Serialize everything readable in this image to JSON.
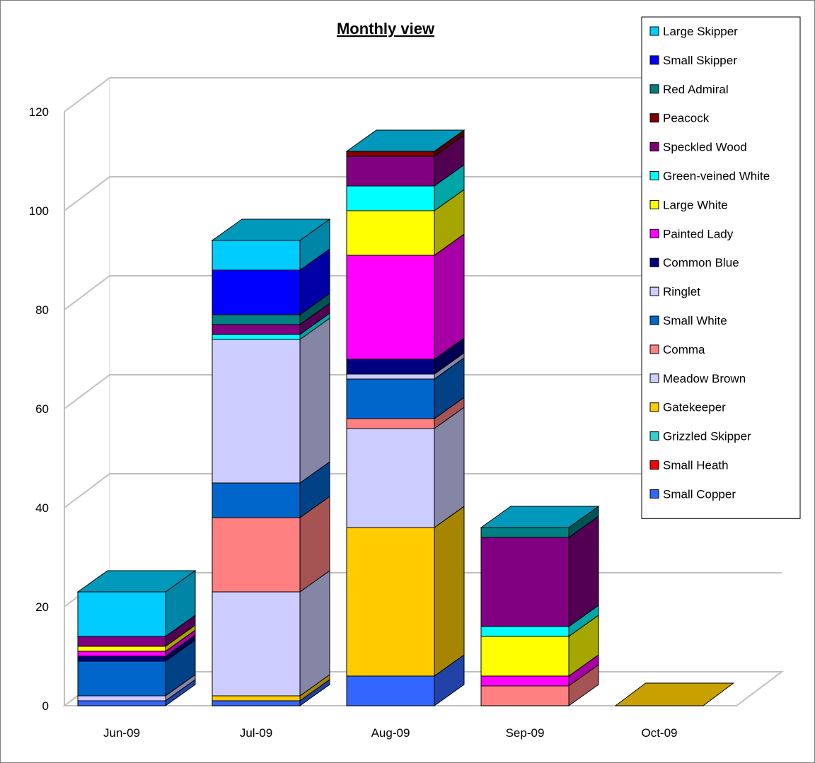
{
  "chart_data": {
    "type": "bar",
    "stacked": true,
    "three_d": true,
    "title": "Monthly view",
    "xlabel": "",
    "ylabel": "",
    "ylim": [
      0,
      120
    ],
    "yticks": [
      0,
      20,
      40,
      60,
      80,
      100,
      120
    ],
    "grid": true,
    "legend_position": "top-right",
    "categories": [
      "Jun-09",
      "Jul-09",
      "Aug-09",
      "Sep-09",
      "Oct-09"
    ],
    "series": [
      {
        "name": "Small Copper",
        "color": "#3366ff",
        "values": [
          1,
          1,
          6,
          0,
          0
        ]
      },
      {
        "name": "Small Heath",
        "color": "#ff0000",
        "values": [
          0,
          0,
          0,
          0,
          0
        ]
      },
      {
        "name": "Grizzled Skipper",
        "color": "#33cccc",
        "values": [
          0,
          0,
          0,
          0,
          0
        ]
      },
      {
        "name": "Gatekeeper",
        "color": "#ffcc00",
        "values": [
          0,
          1,
          30,
          0,
          0
        ]
      },
      {
        "name": "Meadow Brown",
        "color": "#ccccff",
        "values": [
          1,
          21,
          20,
          0,
          0
        ]
      },
      {
        "name": "Comma",
        "color": "#ff8080",
        "values": [
          0,
          15,
          2,
          4,
          0
        ]
      },
      {
        "name": "Small White",
        "color": "#0066cc",
        "values": [
          7,
          7,
          8,
          0,
          0
        ]
      },
      {
        "name": "Ringlet",
        "color": "#ccccff",
        "values": [
          0,
          29,
          1,
          0,
          0
        ]
      },
      {
        "name": "Common Blue",
        "color": "#000080",
        "values": [
          1,
          0,
          3,
          0,
          0
        ]
      },
      {
        "name": "Painted Lady",
        "color": "#ff00ff",
        "values": [
          1,
          0,
          21,
          2,
          0
        ]
      },
      {
        "name": "Large White",
        "color": "#ffff00",
        "values": [
          1,
          0,
          9,
          8,
          0
        ]
      },
      {
        "name": "Green-veined White",
        "color": "#00ffff",
        "values": [
          0,
          1,
          5,
          2,
          0
        ]
      },
      {
        "name": "Speckled Wood",
        "color": "#800080",
        "values": [
          2,
          2,
          6,
          18,
          0
        ]
      },
      {
        "name": "Peacock",
        "color": "#800000",
        "values": [
          0,
          0,
          1,
          0,
          0
        ]
      },
      {
        "name": "Red Admiral",
        "color": "#008080",
        "values": [
          0,
          2,
          0,
          2,
          0
        ]
      },
      {
        "name": "Small Skipper",
        "color": "#0000ff",
        "values": [
          0,
          9,
          0,
          0,
          0
        ]
      },
      {
        "name": "Large Skipper",
        "color": "#00ccff",
        "values": [
          9,
          6,
          0,
          0,
          0
        ]
      }
    ],
    "legend_order": [
      "Large Skipper",
      "Small Skipper",
      "Red Admiral",
      "Peacock",
      "Speckled Wood",
      "Green-veined White",
      "Large White",
      "Painted Lady",
      "Common Blue",
      "Ringlet",
      "Small White",
      "Comma",
      "Meadow Brown",
      "Gatekeeper",
      "Grizzled Skipper",
      "Small Heath",
      "Small Copper"
    ],
    "empty_category_floor_color": "#c8a000"
  }
}
